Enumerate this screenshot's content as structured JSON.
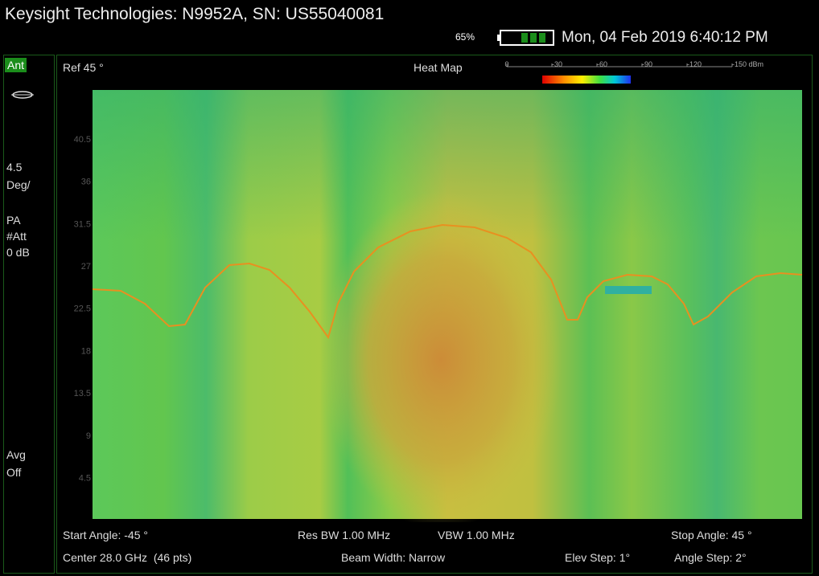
{
  "header": {
    "title": "Keysight Technologies: N9952A, SN: US55040081",
    "battery": "65%",
    "datetime": "Mon, 04 Feb 2019 6:40:12 PM"
  },
  "sidebar": {
    "mode": "Ant",
    "scale": "4.5",
    "scale_unit": "Deg/",
    "pa": "PA",
    "att": "#Att",
    "att_value": "0 dB",
    "avg": "Avg",
    "avg_state": "Off"
  },
  "plot": {
    "ref": "Ref 45 °",
    "legend_title": "Heat Map",
    "legend_ticks": [
      "0",
      "-30",
      "-60",
      "-90",
      "-120",
      "-150 dBm"
    ],
    "yticks": [
      "40.5",
      "36",
      "31.5",
      "27",
      "22.5",
      "18",
      "13.5",
      "9",
      "4.5"
    ]
  },
  "footer": {
    "start": "Start Angle: -45 °",
    "center": "Center 28.0 GHz  (46 pts)",
    "res_bw": "Res BW 1.00 MHz",
    "vbw": "VBW 1.00 MHz",
    "beam": "Beam Width: Narrow",
    "stop": "Stop Angle: 45 °",
    "elev": "Elev Step: 1°",
    "angle_step": "Angle Step: 2°"
  }
}
